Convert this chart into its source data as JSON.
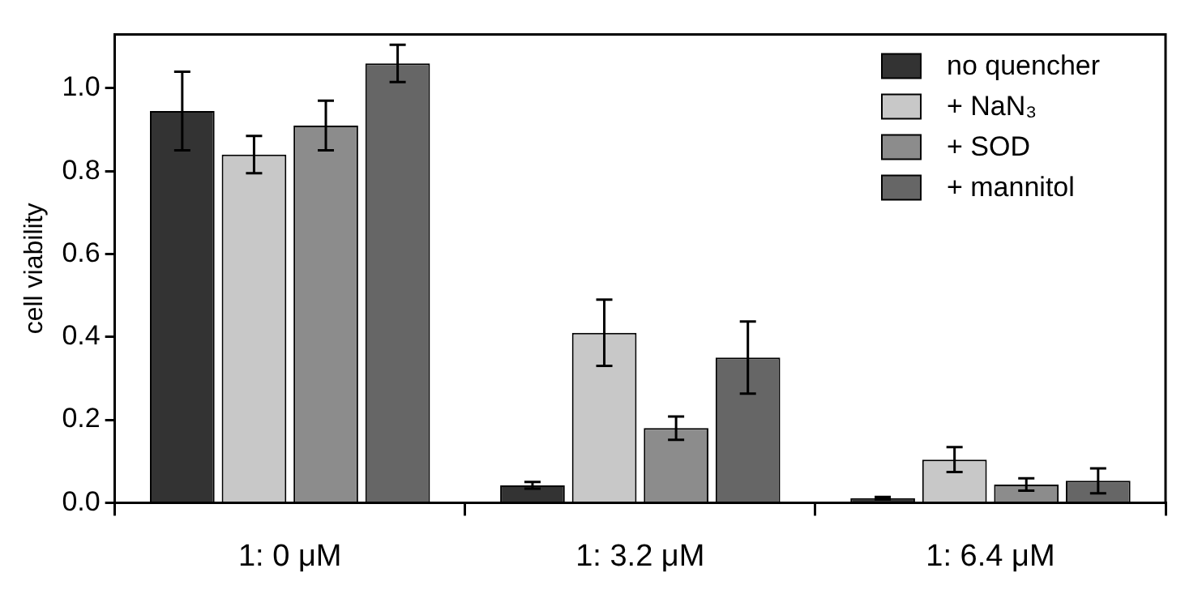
{
  "chart_data": {
    "type": "bar",
    "ylabel": "cell viability",
    "categories": [
      "1: 0 μM",
      "1: 3.2 μM",
      "1: 6.4 μM"
    ],
    "series": [
      {
        "name": "no quencher",
        "color": "#333333",
        "values": [
          0.945,
          0.042,
          0.011
        ],
        "errors": [
          0.095,
          0.008,
          0.003
        ]
      },
      {
        "name": "+ NaN₃",
        "color": "#c8c8c8",
        "values": [
          0.84,
          0.41,
          0.104
        ],
        "errors": [
          0.045,
          0.08,
          0.03
        ]
      },
      {
        "name": "+ SOD",
        "color": "#8c8c8c",
        "values": [
          0.91,
          0.18,
          0.044
        ],
        "errors": [
          0.06,
          0.028,
          0.015
        ]
      },
      {
        "name": "+ mannitol",
        "color": "#666666",
        "values": [
          1.06,
          0.35,
          0.053
        ],
        "errors": [
          0.045,
          0.087,
          0.03
        ]
      }
    ],
    "ylim": [
      0,
      1.13
    ],
    "yticks": [
      {
        "value": 0,
        "label": "0.0"
      },
      {
        "value": 0.2,
        "label": "0.2"
      },
      {
        "value": 0.4,
        "label": "0.4"
      },
      {
        "value": 0.6,
        "label": "0.6"
      },
      {
        "value": 0.8,
        "label": "0.8"
      },
      {
        "value": 1,
        "label": "1.0"
      }
    ],
    "grid": false,
    "legend": "top right"
  }
}
